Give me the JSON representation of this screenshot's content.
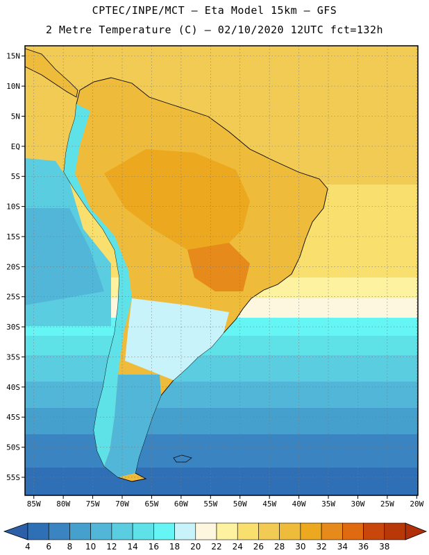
{
  "title_line1": "CPTEC/INPE/MCT –  Eta Model 15km – GFS",
  "title_line2": "2 Metre Temperature (C) – 02/10/2020 12UTC fct=132h",
  "lat_labels": [
    "15N",
    "10N",
    "5N",
    "EQ",
    "5S",
    "10S",
    "15S",
    "20S",
    "25S",
    "30S",
    "35S",
    "40S",
    "45S",
    "50S",
    "55S"
  ],
  "lat_values": [
    15,
    10,
    5,
    0,
    -5,
    -10,
    -15,
    -20,
    -25,
    -30,
    -35,
    -40,
    -45,
    -50,
    -55
  ],
  "lon_labels": [
    "85W",
    "80W",
    "75W",
    "70W",
    "65W",
    "60W",
    "55W",
    "50W",
    "45W",
    "40W",
    "35W",
    "30W",
    "25W",
    "20W"
  ],
  "lon_values": [
    -85,
    -80,
    -75,
    -70,
    -65,
    -60,
    -55,
    -50,
    -45,
    -40,
    -35,
    -30,
    -25,
    -20
  ],
  "colorbar": {
    "levels": [
      "4",
      "6",
      "8",
      "10",
      "12",
      "14",
      "16",
      "18",
      "20",
      "22",
      "24",
      "26",
      "28",
      "30",
      "32",
      "34",
      "36",
      "38"
    ],
    "colors": [
      "#2f6fb5",
      "#3a84c2",
      "#45a0cd",
      "#52b6d8",
      "#5bcde0",
      "#5fe1e8",
      "#66f5f5",
      "#c8f3fa",
      "#fdf7e0",
      "#fcf2a0",
      "#f8df6e",
      "#f2cb55",
      "#eebb3a",
      "#eca81e",
      "#e68a1c",
      "#e06a10",
      "#c9470a",
      "#b83808"
    ],
    "under_color": "#2b5fa8",
    "over_color": "#b0300a"
  }
}
